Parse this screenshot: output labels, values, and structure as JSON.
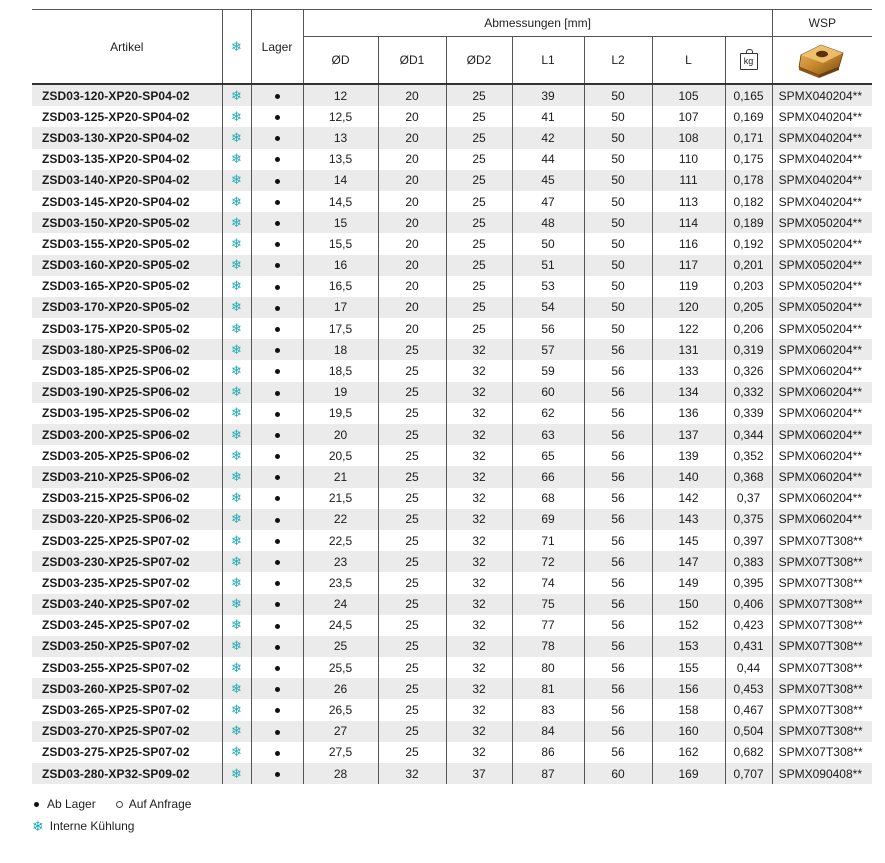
{
  "header": {
    "artikel": "Artikel",
    "lager": "Lager",
    "abmessungen": "Abmessungen [mm]",
    "wsp": "WSP",
    "cols": [
      "ØD",
      "ØD1",
      "ØD2",
      "L1",
      "L2",
      "L"
    ],
    "kg_icon_label": "kg",
    "coolant_icon": "snowflake-icon",
    "insert_image": "insert-image"
  },
  "rows": [
    {
      "artikel": "ZSD03-120-XP20-SP04-02",
      "d": "12",
      "d1": "20",
      "d2": "25",
      "l1": "39",
      "l2": "50",
      "l": "105",
      "kg": "0,165",
      "wsp": "SPMX040204**"
    },
    {
      "artikel": "ZSD03-125-XP20-SP04-02",
      "d": "12,5",
      "d1": "20",
      "d2": "25",
      "l1": "41",
      "l2": "50",
      "l": "107",
      "kg": "0,169",
      "wsp": "SPMX040204**"
    },
    {
      "artikel": "ZSD03-130-XP20-SP04-02",
      "d": "13",
      "d1": "20",
      "d2": "25",
      "l1": "42",
      "l2": "50",
      "l": "108",
      "kg": "0,171",
      "wsp": "SPMX040204**"
    },
    {
      "artikel": "ZSD03-135-XP20-SP04-02",
      "d": "13,5",
      "d1": "20",
      "d2": "25",
      "l1": "44",
      "l2": "50",
      "l": "110",
      "kg": "0,175",
      "wsp": "SPMX040204**"
    },
    {
      "artikel": "ZSD03-140-XP20-SP04-02",
      "d": "14",
      "d1": "20",
      "d2": "25",
      "l1": "45",
      "l2": "50",
      "l": "111",
      "kg": "0,178",
      "wsp": "SPMX040204**"
    },
    {
      "artikel": "ZSD03-145-XP20-SP04-02",
      "d": "14,5",
      "d1": "20",
      "d2": "25",
      "l1": "47",
      "l2": "50",
      "l": "113",
      "kg": "0,182",
      "wsp": "SPMX040204**"
    },
    {
      "artikel": "ZSD03-150-XP20-SP05-02",
      "d": "15",
      "d1": "20",
      "d2": "25",
      "l1": "48",
      "l2": "50",
      "l": "114",
      "kg": "0,189",
      "wsp": "SPMX050204**"
    },
    {
      "artikel": "ZSD03-155-XP20-SP05-02",
      "d": "15,5",
      "d1": "20",
      "d2": "25",
      "l1": "50",
      "l2": "50",
      "l": "116",
      "kg": "0,192",
      "wsp": "SPMX050204**"
    },
    {
      "artikel": "ZSD03-160-XP20-SP05-02",
      "d": "16",
      "d1": "20",
      "d2": "25",
      "l1": "51",
      "l2": "50",
      "l": "117",
      "kg": "0,201",
      "wsp": "SPMX050204**"
    },
    {
      "artikel": "ZSD03-165-XP20-SP05-02",
      "d": "16,5",
      "d1": "20",
      "d2": "25",
      "l1": "53",
      "l2": "50",
      "l": "119",
      "kg": "0,203",
      "wsp": "SPMX050204**"
    },
    {
      "artikel": "ZSD03-170-XP20-SP05-02",
      "d": "17",
      "d1": "20",
      "d2": "25",
      "l1": "54",
      "l2": "50",
      "l": "120",
      "kg": "0,205",
      "wsp": "SPMX050204**"
    },
    {
      "artikel": "ZSD03-175-XP20-SP05-02",
      "d": "17,5",
      "d1": "20",
      "d2": "25",
      "l1": "56",
      "l2": "50",
      "l": "122",
      "kg": "0,206",
      "wsp": "SPMX050204**"
    },
    {
      "artikel": "ZSD03-180-XP25-SP06-02",
      "d": "18",
      "d1": "25",
      "d2": "32",
      "l1": "57",
      "l2": "56",
      "l": "131",
      "kg": "0,319",
      "wsp": "SPMX060204**"
    },
    {
      "artikel": "ZSD03-185-XP25-SP06-02",
      "d": "18,5",
      "d1": "25",
      "d2": "32",
      "l1": "59",
      "l2": "56",
      "l": "133",
      "kg": "0,326",
      "wsp": "SPMX060204**"
    },
    {
      "artikel": "ZSD03-190-XP25-SP06-02",
      "d": "19",
      "d1": "25",
      "d2": "32",
      "l1": "60",
      "l2": "56",
      "l": "134",
      "kg": "0,332",
      "wsp": "SPMX060204**"
    },
    {
      "artikel": "ZSD03-195-XP25-SP06-02",
      "d": "19,5",
      "d1": "25",
      "d2": "32",
      "l1": "62",
      "l2": "56",
      "l": "136",
      "kg": "0,339",
      "wsp": "SPMX060204**"
    },
    {
      "artikel": "ZSD03-200-XP25-SP06-02",
      "d": "20",
      "d1": "25",
      "d2": "32",
      "l1": "63",
      "l2": "56",
      "l": "137",
      "kg": "0,344",
      "wsp": "SPMX060204**"
    },
    {
      "artikel": "ZSD03-205-XP25-SP06-02",
      "d": "20,5",
      "d1": "25",
      "d2": "32",
      "l1": "65",
      "l2": "56",
      "l": "139",
      "kg": "0,352",
      "wsp": "SPMX060204**"
    },
    {
      "artikel": "ZSD03-210-XP25-SP06-02",
      "d": "21",
      "d1": "25",
      "d2": "32",
      "l1": "66",
      "l2": "56",
      "l": "140",
      "kg": "0,368",
      "wsp": "SPMX060204**"
    },
    {
      "artikel": "ZSD03-215-XP25-SP06-02",
      "d": "21,5",
      "d1": "25",
      "d2": "32",
      "l1": "68",
      "l2": "56",
      "l": "142",
      "kg": "0,37",
      "wsp": "SPMX060204**"
    },
    {
      "artikel": "ZSD03-220-XP25-SP06-02",
      "d": "22",
      "d1": "25",
      "d2": "32",
      "l1": "69",
      "l2": "56",
      "l": "143",
      "kg": "0,375",
      "wsp": "SPMX060204**"
    },
    {
      "artikel": "ZSD03-225-XP25-SP07-02",
      "d": "22,5",
      "d1": "25",
      "d2": "32",
      "l1": "71",
      "l2": "56",
      "l": "145",
      "kg": "0,397",
      "wsp": "SPMX07T308**"
    },
    {
      "artikel": "ZSD03-230-XP25-SP07-02",
      "d": "23",
      "d1": "25",
      "d2": "32",
      "l1": "72",
      "l2": "56",
      "l": "147",
      "kg": "0,383",
      "wsp": "SPMX07T308**"
    },
    {
      "artikel": "ZSD03-235-XP25-SP07-02",
      "d": "23,5",
      "d1": "25",
      "d2": "32",
      "l1": "74",
      "l2": "56",
      "l": "149",
      "kg": "0,395",
      "wsp": "SPMX07T308**"
    },
    {
      "artikel": "ZSD03-240-XP25-SP07-02",
      "d": "24",
      "d1": "25",
      "d2": "32",
      "l1": "75",
      "l2": "56",
      "l": "150",
      "kg": "0,406",
      "wsp": "SPMX07T308**"
    },
    {
      "artikel": "ZSD03-245-XP25-SP07-02",
      "d": "24,5",
      "d1": "25",
      "d2": "32",
      "l1": "77",
      "l2": "56",
      "l": "152",
      "kg": "0,423",
      "wsp": "SPMX07T308**"
    },
    {
      "artikel": "ZSD03-250-XP25-SP07-02",
      "d": "25",
      "d1": "25",
      "d2": "32",
      "l1": "78",
      "l2": "56",
      "l": "153",
      "kg": "0,431",
      "wsp": "SPMX07T308**"
    },
    {
      "artikel": "ZSD03-255-XP25-SP07-02",
      "d": "25,5",
      "d1": "25",
      "d2": "32",
      "l1": "80",
      "l2": "56",
      "l": "155",
      "kg": "0,44",
      "wsp": "SPMX07T308**"
    },
    {
      "artikel": "ZSD03-260-XP25-SP07-02",
      "d": "26",
      "d1": "25",
      "d2": "32",
      "l1": "81",
      "l2": "56",
      "l": "156",
      "kg": "0,453",
      "wsp": "SPMX07T308**"
    },
    {
      "artikel": "ZSD03-265-XP25-SP07-02",
      "d": "26,5",
      "d1": "25",
      "d2": "32",
      "l1": "83",
      "l2": "56",
      "l": "158",
      "kg": "0,467",
      "wsp": "SPMX07T308**"
    },
    {
      "artikel": "ZSD03-270-XP25-SP07-02",
      "d": "27",
      "d1": "25",
      "d2": "32",
      "l1": "84",
      "l2": "56",
      "l": "160",
      "kg": "0,504",
      "wsp": "SPMX07T308**"
    },
    {
      "artikel": "ZSD03-275-XP25-SP07-02",
      "d": "27,5",
      "d1": "25",
      "d2": "32",
      "l1": "86",
      "l2": "56",
      "l": "162",
      "kg": "0,682",
      "wsp": "SPMX07T308**"
    },
    {
      "artikel": "ZSD03-280-XP32-SP09-02",
      "d": "28",
      "d1": "32",
      "d2": "37",
      "l1": "87",
      "l2": "60",
      "l": "169",
      "kg": "0,707",
      "wsp": "SPMX090408**"
    }
  ],
  "legend": {
    "ab_lager": "Ab Lager",
    "auf_anfrage": "Auf Anfrage",
    "interne_kuehlung": "Interne Kühlung"
  },
  "colors": {
    "coolant": "#1aa9b5",
    "stripe": "#ebebeb"
  }
}
